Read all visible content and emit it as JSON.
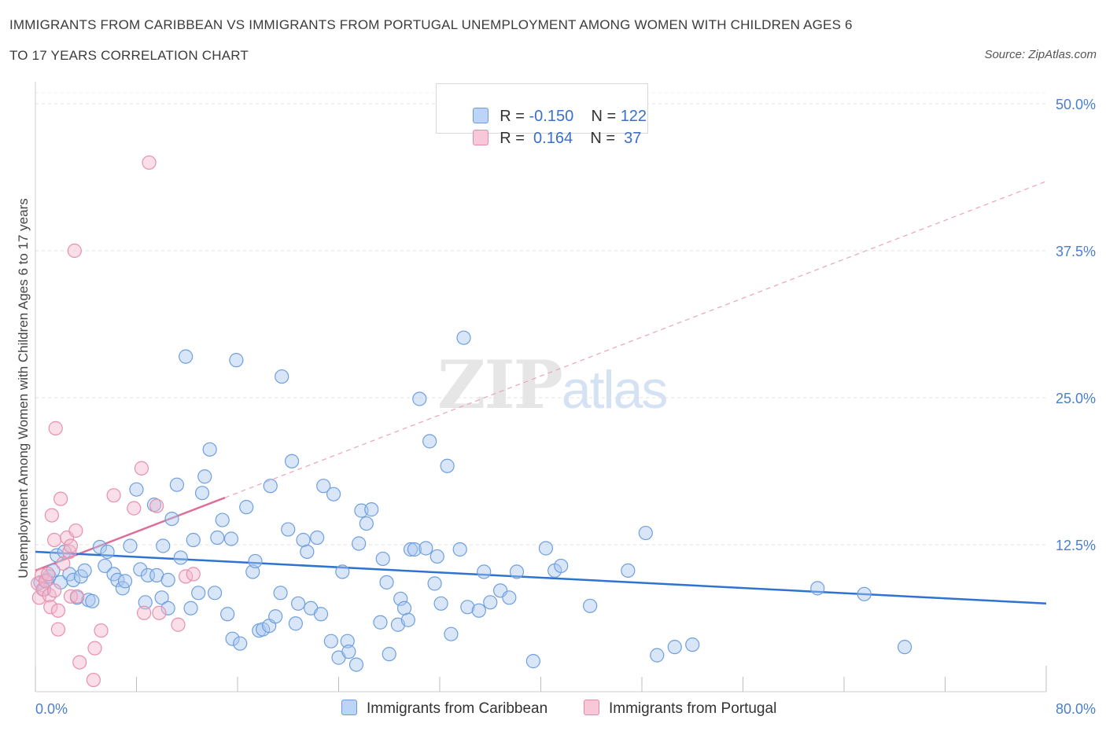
{
  "title_line1": "IMMIGRANTS FROM CARIBBEAN VS IMMIGRANTS FROM PORTUGAL UNEMPLOYMENT AMONG WOMEN WITH CHILDREN AGES 6",
  "title_line2": "TO 17 YEARS CORRELATION CHART",
  "source": "Source: ZipAtlas.com",
  "watermark": {
    "zip": "ZIP",
    "atlas": "atlas"
  },
  "legend": {
    "rows": [
      {
        "r_label": "R = ",
        "r_value": "-0.150",
        "n_label": "N = ",
        "n_value": "122",
        "color": "#a8c8f0"
      },
      {
        "r_label": "R = ",
        "r_value": " 0.164",
        "n_label": "N = ",
        "n_value": " 37",
        "color": "#f5b8cb"
      }
    ]
  },
  "bottom_legend": [
    {
      "label": "Immigrants from Caribbean",
      "color": "#a8c8f0"
    },
    {
      "label": "Immigrants from Portugal",
      "color": "#f5b8cb"
    }
  ],
  "chart_data": {
    "type": "scatter",
    "title": "IMMIGRANTS FROM CARIBBEAN VS IMMIGRANTS FROM PORTUGAL UNEMPLOYMENT AMONG WOMEN WITH CHILDREN AGES 6 TO 17 YEARS CORRELATION CHART",
    "ylabel": "Unemployment Among Women with Children Ages 6 to 17 years",
    "xlabel": "",
    "xlim": [
      0,
      80
    ],
    "ylim": [
      0,
      50
    ],
    "x_tick_labels": [
      "0.0%",
      "80.0%"
    ],
    "y_ticks": [
      12.5,
      25.0,
      37.5,
      50.0
    ],
    "y_tick_labels": [
      "12.5%",
      "25.0%",
      "37.5%",
      "50.0%"
    ],
    "grid": true,
    "colors": {
      "caribbean": "#4a86d8",
      "caribbean_fill": "#a8c8f0",
      "portugal": "#e0789f",
      "portugal_fill": "#f5b8cb"
    },
    "series": [
      {
        "name": "Immigrants from Caribbean",
        "r": -0.15,
        "n": 122,
        "trend": {
          "x": [
            0,
            80
          ],
          "y": [
            11.9,
            7.5
          ]
        },
        "points": [
          [
            0.4,
            9.3
          ],
          [
            0.7,
            8.7
          ],
          [
            0.9,
            9.5
          ],
          [
            1.1,
            9.8
          ],
          [
            1.4,
            10.3
          ],
          [
            1.7,
            11.6
          ],
          [
            2.0,
            9.3
          ],
          [
            2.3,
            11.9
          ],
          [
            2.7,
            10.0
          ],
          [
            3.0,
            9.5
          ],
          [
            3.3,
            8.0
          ],
          [
            3.6,
            9.8
          ],
          [
            3.9,
            10.3
          ],
          [
            4.2,
            7.8
          ],
          [
            4.5,
            7.7
          ],
          [
            5.1,
            12.3
          ],
          [
            5.5,
            10.7
          ],
          [
            5.7,
            11.9
          ],
          [
            6.2,
            10.0
          ],
          [
            6.5,
            9.5
          ],
          [
            6.9,
            8.8
          ],
          [
            7.1,
            9.4
          ],
          [
            7.5,
            12.4
          ],
          [
            8.0,
            17.2
          ],
          [
            8.3,
            10.4
          ],
          [
            8.7,
            7.6
          ],
          [
            8.9,
            9.9
          ],
          [
            9.4,
            15.9
          ],
          [
            9.6,
            9.9
          ],
          [
            10.0,
            8.0
          ],
          [
            10.1,
            12.4
          ],
          [
            10.5,
            9.5
          ],
          [
            10.5,
            7.1
          ],
          [
            10.8,
            14.7
          ],
          [
            11.2,
            17.6
          ],
          [
            11.9,
            28.5
          ],
          [
            11.5,
            11.4
          ],
          [
            12.3,
            7.1
          ],
          [
            12.5,
            12.9
          ],
          [
            12.9,
            8.4
          ],
          [
            13.2,
            16.9
          ],
          [
            13.4,
            18.3
          ],
          [
            13.8,
            20.6
          ],
          [
            14.2,
            8.4
          ],
          [
            14.4,
            13.1
          ],
          [
            14.8,
            14.6
          ],
          [
            15.2,
            6.6
          ],
          [
            15.5,
            13.0
          ],
          [
            15.6,
            4.5
          ],
          [
            15.9,
            28.2
          ],
          [
            16.2,
            4.1
          ],
          [
            16.7,
            15.7
          ],
          [
            17.2,
            10.2
          ],
          [
            17.4,
            11.1
          ],
          [
            17.7,
            5.2
          ],
          [
            18.0,
            5.3
          ],
          [
            18.5,
            5.6
          ],
          [
            18.6,
            17.5
          ],
          [
            19.0,
            6.4
          ],
          [
            19.4,
            8.4
          ],
          [
            19.5,
            26.8
          ],
          [
            20.0,
            13.8
          ],
          [
            20.3,
            19.6
          ],
          [
            20.6,
            5.8
          ],
          [
            20.8,
            7.5
          ],
          [
            21.2,
            12.9
          ],
          [
            21.5,
            11.9
          ],
          [
            21.8,
            7.1
          ],
          [
            22.3,
            13.1
          ],
          [
            22.6,
            6.6
          ],
          [
            22.8,
            17.5
          ],
          [
            23.4,
            4.3
          ],
          [
            23.6,
            16.8
          ],
          [
            24.0,
            2.9
          ],
          [
            24.3,
            10.2
          ],
          [
            24.7,
            4.3
          ],
          [
            24.8,
            3.4
          ],
          [
            25.4,
            2.3
          ],
          [
            25.6,
            12.6
          ],
          [
            25.8,
            15.4
          ],
          [
            26.2,
            14.3
          ],
          [
            26.6,
            15.5
          ],
          [
            27.3,
            5.9
          ],
          [
            27.5,
            11.3
          ],
          [
            27.8,
            9.3
          ],
          [
            28.0,
            3.2
          ],
          [
            28.7,
            5.7
          ],
          [
            28.9,
            7.9
          ],
          [
            29.2,
            7.1
          ],
          [
            29.5,
            6.1
          ],
          [
            29.7,
            12.1
          ],
          [
            30.0,
            12.1
          ],
          [
            30.4,
            24.9
          ],
          [
            30.9,
            12.2
          ],
          [
            31.2,
            21.3
          ],
          [
            31.6,
            9.2
          ],
          [
            31.8,
            11.5
          ],
          [
            32.1,
            7.5
          ],
          [
            32.6,
            19.2
          ],
          [
            32.9,
            4.9
          ],
          [
            33.6,
            12.1
          ],
          [
            33.9,
            30.1
          ],
          [
            34.2,
            7.2
          ],
          [
            35.1,
            6.9
          ],
          [
            35.5,
            10.2
          ],
          [
            36.0,
            7.6
          ],
          [
            36.8,
            8.6
          ],
          [
            37.5,
            8.0
          ],
          [
            38.1,
            10.2
          ],
          [
            39.4,
            2.6
          ],
          [
            40.4,
            12.2
          ],
          [
            41.1,
            10.3
          ],
          [
            41.6,
            10.7
          ],
          [
            43.9,
            7.3
          ],
          [
            46.9,
            10.3
          ],
          [
            48.3,
            13.5
          ],
          [
            49.2,
            3.1
          ],
          [
            50.6,
            3.8
          ],
          [
            52.0,
            4.0
          ],
          [
            61.9,
            8.8
          ],
          [
            65.6,
            8.3
          ],
          [
            68.8,
            3.8
          ]
        ]
      },
      {
        "name": "Immigrants from Portugal",
        "r": 0.164,
        "n": 37,
        "trend": {
          "x": [
            0,
            15
          ],
          "y": [
            10.3,
            16.5
          ]
        },
        "trend_extended": {
          "x": [
            15,
            80
          ],
          "y": [
            16.5,
            43.4
          ]
        },
        "points": [
          [
            0.2,
            9.2
          ],
          [
            0.3,
            8.0
          ],
          [
            0.5,
            9.9
          ],
          [
            0.6,
            8.7
          ],
          [
            0.8,
            9.4
          ],
          [
            1.0,
            10.0
          ],
          [
            1.1,
            8.2
          ],
          [
            1.2,
            7.2
          ],
          [
            1.3,
            15.0
          ],
          [
            1.5,
            8.6
          ],
          [
            1.5,
            12.9
          ],
          [
            1.6,
            22.4
          ],
          [
            1.8,
            6.9
          ],
          [
            1.8,
            5.3
          ],
          [
            2.0,
            16.4
          ],
          [
            2.2,
            10.9
          ],
          [
            2.5,
            13.1
          ],
          [
            2.7,
            11.9
          ],
          [
            2.8,
            12.4
          ],
          [
            2.8,
            8.1
          ],
          [
            3.1,
            37.5
          ],
          [
            3.2,
            13.7
          ],
          [
            3.3,
            8.1
          ],
          [
            3.5,
            2.5
          ],
          [
            4.6,
            1.0
          ],
          [
            4.7,
            3.7
          ],
          [
            5.2,
            5.2
          ],
          [
            6.2,
            16.7
          ],
          [
            7.8,
            15.6
          ],
          [
            8.4,
            19.0
          ],
          [
            8.6,
            6.7
          ],
          [
            9.0,
            45.0
          ],
          [
            9.6,
            15.8
          ],
          [
            9.8,
            6.7
          ],
          [
            11.3,
            5.7
          ],
          [
            11.9,
            9.8
          ],
          [
            12.5,
            10.0
          ]
        ]
      }
    ]
  }
}
